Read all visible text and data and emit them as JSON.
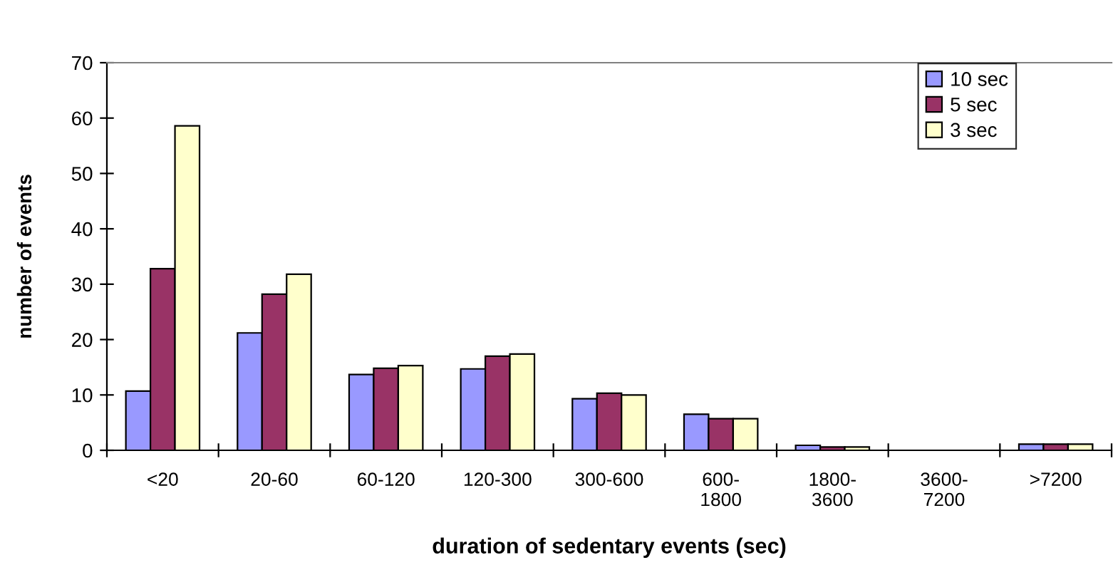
{
  "chart_data": {
    "type": "bar",
    "xlabel": "duration of sedentary events (sec)",
    "ylabel": "number of events",
    "categories": [
      "<20",
      "20-60",
      "60-120",
      "120-300",
      "300-600",
      "600-\n1800",
      "1800-\n3600",
      "3600-\n7200",
      ">7200"
    ],
    "series": [
      {
        "name": "10 sec",
        "color": "#9999ff",
        "values": [
          10.7,
          21.2,
          13.7,
          14.7,
          9.3,
          6.5,
          0.9,
          0,
          1.1
        ]
      },
      {
        "name": "5 sec",
        "color": "#993366",
        "values": [
          32.8,
          28.2,
          14.8,
          17.0,
          10.3,
          5.7,
          0.6,
          0,
          1.1
        ]
      },
      {
        "name": "3 sec",
        "color": "#ffffcc",
        "values": [
          58.6,
          31.8,
          15.3,
          17.4,
          10.0,
          5.7,
          0.6,
          0,
          1.1
        ]
      }
    ],
    "ylim": [
      0,
      70
    ],
    "yticks": [
      0,
      10,
      20,
      30,
      40,
      50,
      60,
      70
    ],
    "grid": false,
    "legend": "top right"
  }
}
